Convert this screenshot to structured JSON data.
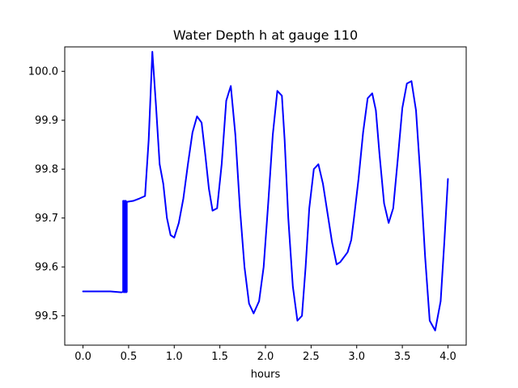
{
  "chart_data": {
    "type": "line",
    "title": "Water Depth h at gauge 110",
    "xlabel": "hours",
    "ylabel": "",
    "xlim": [
      -0.2,
      4.2
    ],
    "ylim": [
      99.44,
      100.05
    ],
    "xticks": [
      0.0,
      0.5,
      1.0,
      1.5,
      2.0,
      2.5,
      3.0,
      3.5,
      4.0
    ],
    "xtick_labels": [
      "0.0",
      "0.5",
      "1.0",
      "1.5",
      "2.0",
      "2.5",
      "3.0",
      "3.5",
      "4.0"
    ],
    "yticks": [
      99.5,
      99.6,
      99.7,
      99.8,
      99.9,
      100.0
    ],
    "ytick_labels": [
      "99.5",
      "99.6",
      "99.7",
      "99.8",
      "99.9",
      "100.0"
    ],
    "grid": false,
    "series": [
      {
        "color": "#0000ff",
        "x": [
          0.0,
          0.3,
          0.42,
          0.44,
          0.44,
          0.45,
          0.45,
          0.46,
          0.46,
          0.47,
          0.47,
          0.48,
          0.48,
          0.55,
          0.62,
          0.68,
          0.72,
          0.76,
          0.8,
          0.84,
          0.88,
          0.92,
          0.96,
          1.0,
          1.05,
          1.1,
          1.15,
          1.2,
          1.25,
          1.3,
          1.34,
          1.38,
          1.42,
          1.47,
          1.52,
          1.57,
          1.62,
          1.67,
          1.72,
          1.77,
          1.82,
          1.87,
          1.93,
          1.98,
          2.03,
          2.08,
          2.13,
          2.18,
          2.21,
          2.25,
          2.3,
          2.35,
          2.4,
          2.44,
          2.48,
          2.53,
          2.58,
          2.63,
          2.68,
          2.73,
          2.78,
          2.82,
          2.86,
          2.9,
          2.94,
          2.97,
          3.02,
          3.07,
          3.12,
          3.17,
          3.21,
          3.25,
          3.3,
          3.35,
          3.4,
          3.45,
          3.5,
          3.55,
          3.6,
          3.65,
          3.7,
          3.75,
          3.8,
          3.86,
          3.92,
          3.96,
          4.0
        ],
        "y": [
          99.55,
          99.55,
          99.548,
          99.549,
          99.735,
          99.735,
          99.548,
          99.549,
          99.735,
          99.735,
          99.548,
          99.549,
          99.733,
          99.735,
          99.74,
          99.745,
          99.86,
          100.04,
          99.93,
          99.81,
          99.77,
          99.7,
          99.665,
          99.66,
          99.69,
          99.74,
          99.81,
          99.875,
          99.908,
          99.895,
          99.83,
          99.76,
          99.715,
          99.72,
          99.81,
          99.94,
          99.97,
          99.87,
          99.72,
          99.6,
          99.525,
          99.505,
          99.53,
          99.6,
          99.73,
          99.87,
          99.96,
          99.95,
          99.86,
          99.7,
          99.56,
          99.49,
          99.5,
          99.6,
          99.72,
          99.8,
          99.81,
          99.77,
          99.71,
          99.65,
          99.605,
          99.61,
          99.62,
          99.63,
          99.655,
          99.7,
          99.78,
          99.875,
          99.945,
          99.955,
          99.92,
          99.83,
          99.73,
          99.69,
          99.72,
          99.82,
          99.925,
          99.975,
          99.98,
          99.92,
          99.78,
          99.62,
          99.49,
          99.47,
          99.53,
          99.65,
          99.78
        ]
      }
    ]
  }
}
